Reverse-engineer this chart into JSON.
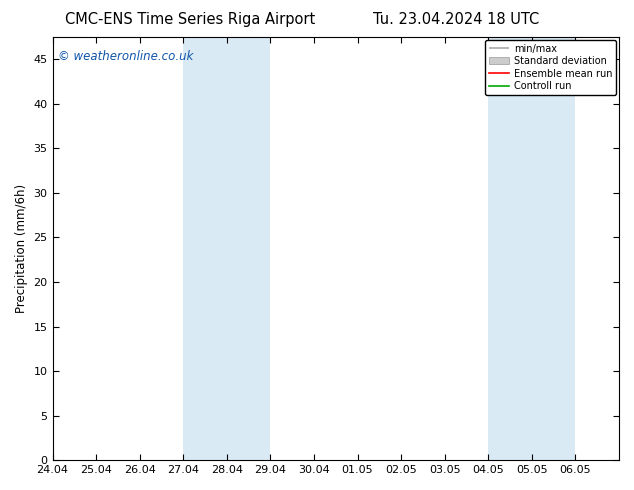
{
  "title_left": "CMC-ENS Time Series Riga Airport",
  "title_right": "Tu. 23.04.2024 18 UTC",
  "ylabel": "Precipitation (mm/6h)",
  "watermark": "© weatheronline.co.uk",
  "xlim_left": 0,
  "xlim_right": 13,
  "ylim_bottom": 0,
  "ylim_top": 47.5,
  "yticks": [
    0,
    5,
    10,
    15,
    20,
    25,
    30,
    35,
    40,
    45
  ],
  "xtick_labels": [
    "24.04",
    "25.04",
    "26.04",
    "27.04",
    "28.04",
    "29.04",
    "30.04",
    "01.05",
    "02.05",
    "03.05",
    "04.05",
    "05.05",
    "06.05"
  ],
  "shaded_bands": [
    {
      "xmin": 3,
      "xmax": 5,
      "color": "#daeaf5"
    },
    {
      "xmin": 10,
      "xmax": 12,
      "color": "#daeaf5"
    }
  ],
  "legend_entries": [
    {
      "label": "min/max",
      "color": "#aaaaaa",
      "lw": 1.2,
      "style": "minmax"
    },
    {
      "label": "Standard deviation",
      "color": "#cccccc",
      "lw": 6,
      "style": "bar"
    },
    {
      "label": "Ensemble mean run",
      "color": "#ff0000",
      "lw": 1.2,
      "style": "line"
    },
    {
      "label": "Controll run",
      "color": "#00aa00",
      "lw": 1.2,
      "style": "line"
    }
  ],
  "bg_color": "#ffffff",
  "axes_bg_color": "#ffffff",
  "spine_color": "#000000",
  "tick_label_color": "#000000",
  "title_fontsize": 10.5,
  "label_fontsize": 8.5,
  "tick_fontsize": 8,
  "watermark_color": "#1155aa",
  "watermark_fontsize": 8.5
}
